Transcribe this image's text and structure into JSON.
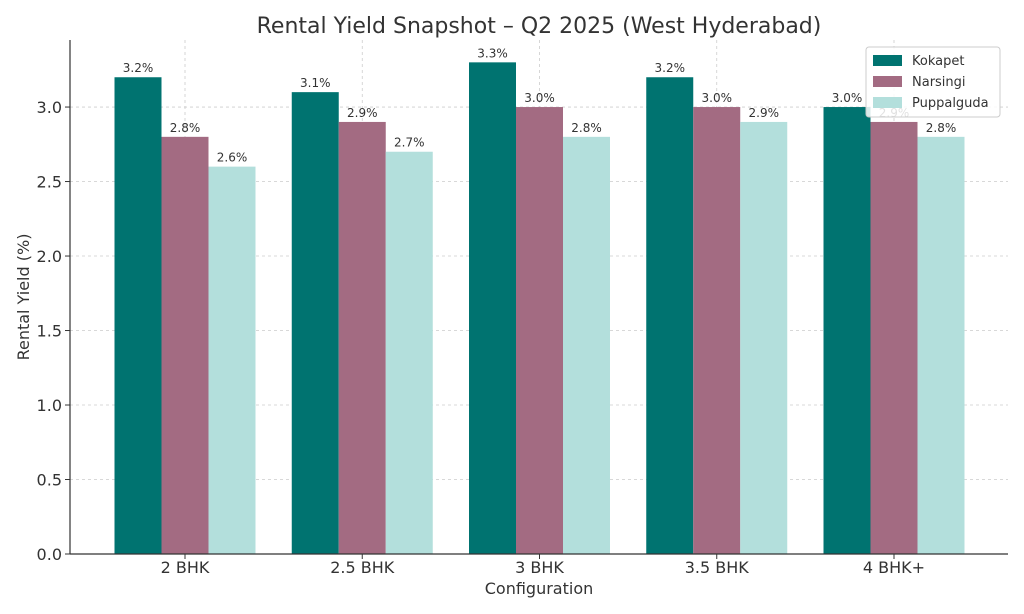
{
  "chart_data": {
    "type": "bar",
    "title": "Rental Yield Snapshot – Q2 2025 (West Hyderabad)",
    "xlabel": "Configuration",
    "ylabel": "Rental Yield (%)",
    "categories": [
      "2 BHK",
      "2.5 BHK",
      "3 BHK",
      "3.5 BHK",
      "4 BHK+"
    ],
    "ylim": [
      0,
      3.45
    ],
    "yticks": [
      0.0,
      0.5,
      1.0,
      1.5,
      2.0,
      2.5,
      3.0
    ],
    "ytick_labels": [
      "0.0",
      "0.5",
      "1.0",
      "1.5",
      "2.0",
      "2.5",
      "3.0"
    ],
    "grid": true,
    "legend_position": "top-right",
    "series": [
      {
        "name": "Kokapet",
        "color": "#007370",
        "values": [
          3.2,
          3.1,
          3.3,
          3.2,
          3.0
        ],
        "labels": [
          "3.2%",
          "3.1%",
          "3.3%",
          "3.2%",
          "3.0%"
        ]
      },
      {
        "name": "Narsingi",
        "color": "#a36b82",
        "values": [
          2.8,
          2.9,
          3.0,
          3.0,
          2.9
        ],
        "labels": [
          "2.8%",
          "2.9%",
          "3.0%",
          "3.0%",
          "2.9%"
        ]
      },
      {
        "name": "Puppalguda",
        "color": "#b3dfdc",
        "values": [
          2.6,
          2.7,
          2.8,
          2.9,
          2.8
        ],
        "labels": [
          "2.6%",
          "2.7%",
          "2.8%",
          "2.9%",
          "2.8%"
        ]
      }
    ]
  }
}
